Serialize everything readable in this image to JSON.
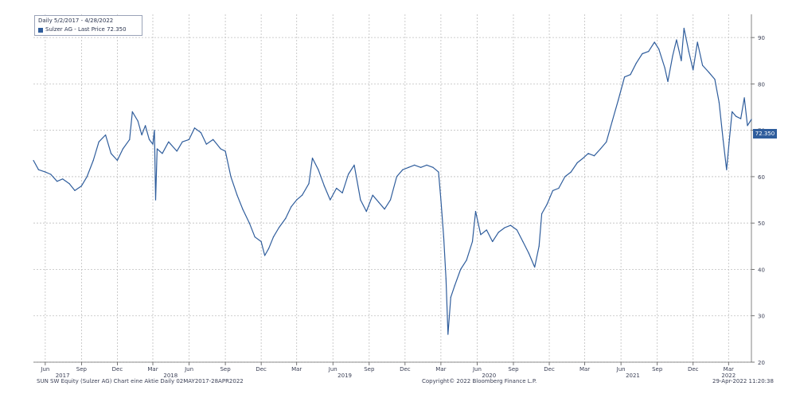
{
  "legend": {
    "date_range": "Daily 5/2/2017 - 4/28/2022",
    "series_label": "Sulzer AG - Last Price 72.350"
  },
  "last_price_tag": "72.350",
  "footer": {
    "left": "SUN SW Equity (Sulzer AG) Chart eine Aktie  Daily 02MAY2017-28APR2022",
    "center": "Copyright© 2022 Bloomberg Finance L.P.",
    "right": "29-Apr-2022 11:20:38"
  },
  "colors": {
    "line": "#2f5d9c",
    "grid": "#bfbfbf",
    "axis_text": "#3a3f55"
  },
  "chart_data": {
    "type": "line",
    "title": "",
    "xlabel": "",
    "ylabel": "",
    "ylim": [
      20,
      95
    ],
    "yticks": [
      20,
      30,
      40,
      50,
      60,
      70,
      80,
      90
    ],
    "xlim": [
      "2017-05-02",
      "2022-04-28"
    ],
    "xticks": [
      {
        "label": "Jun",
        "date": "2017-06-01"
      },
      {
        "label": "Sep",
        "date": "2017-09-01"
      },
      {
        "label": "Dec",
        "date": "2017-12-01"
      },
      {
        "label": "Mar",
        "date": "2018-03-01"
      },
      {
        "label": "Jun",
        "date": "2018-06-01"
      },
      {
        "label": "Sep",
        "date": "2018-09-01"
      },
      {
        "label": "Dec",
        "date": "2018-12-01"
      },
      {
        "label": "Mar",
        "date": "2019-03-01"
      },
      {
        "label": "Jun",
        "date": "2019-06-01"
      },
      {
        "label": "Sep",
        "date": "2019-09-01"
      },
      {
        "label": "Dec",
        "date": "2019-12-01"
      },
      {
        "label": "Mar",
        "date": "2020-03-01"
      },
      {
        "label": "Jun",
        "date": "2020-06-01"
      },
      {
        "label": "Sep",
        "date": "2020-09-01"
      },
      {
        "label": "Dec",
        "date": "2020-12-01"
      },
      {
        "label": "Mar",
        "date": "2021-03-01"
      },
      {
        "label": "Jun",
        "date": "2021-06-01"
      },
      {
        "label": "Sep",
        "date": "2021-09-01"
      },
      {
        "label": "Dec",
        "date": "2021-12-01"
      },
      {
        "label": "Mar",
        "date": "2022-03-01"
      }
    ],
    "year_labels": [
      {
        "label": "2017",
        "date": "2017-07-15"
      },
      {
        "label": "2018",
        "date": "2018-04-15"
      },
      {
        "label": "2019",
        "date": "2019-07-01"
      },
      {
        "label": "2020",
        "date": "2020-07-01"
      },
      {
        "label": "2021",
        "date": "2021-07-01"
      },
      {
        "label": "2022",
        "date": "2022-03-01"
      }
    ],
    "grid": true,
    "legend_position": "top-left",
    "series": [
      {
        "name": "Sulzer AG - Last Price",
        "color": "#2f5d9c",
        "points": [
          [
            "2017-05-02",
            63.5
          ],
          [
            "2017-05-15",
            61.5
          ],
          [
            "2017-06-01",
            61.0
          ],
          [
            "2017-06-15",
            60.5
          ],
          [
            "2017-07-01",
            59.0
          ],
          [
            "2017-07-15",
            59.5
          ],
          [
            "2017-08-01",
            58.5
          ],
          [
            "2017-08-15",
            57.0
          ],
          [
            "2017-09-01",
            58.0
          ],
          [
            "2017-09-15",
            60.0
          ],
          [
            "2017-10-01",
            63.5
          ],
          [
            "2017-10-15",
            67.5
          ],
          [
            "2017-11-01",
            69.0
          ],
          [
            "2017-11-15",
            65.0
          ],
          [
            "2017-12-01",
            63.5
          ],
          [
            "2017-12-15",
            66.0
          ],
          [
            "2018-01-01",
            68.0
          ],
          [
            "2018-01-08",
            74.0
          ],
          [
            "2018-01-22",
            72.0
          ],
          [
            "2018-02-01",
            69.0
          ],
          [
            "2018-02-10",
            71.0
          ],
          [
            "2018-02-20",
            68.0
          ],
          [
            "2018-03-01",
            67.0
          ],
          [
            "2018-03-05",
            70.0
          ],
          [
            "2018-03-08",
            55.0
          ],
          [
            "2018-03-12",
            66.0
          ],
          [
            "2018-03-25",
            65.0
          ],
          [
            "2018-04-10",
            67.5
          ],
          [
            "2018-05-01",
            65.5
          ],
          [
            "2018-05-15",
            67.5
          ],
          [
            "2018-06-01",
            68.0
          ],
          [
            "2018-06-15",
            70.5
          ],
          [
            "2018-07-01",
            69.5
          ],
          [
            "2018-07-15",
            67.0
          ],
          [
            "2018-08-01",
            68.0
          ],
          [
            "2018-08-20",
            66.0
          ],
          [
            "2018-09-01",
            65.5
          ],
          [
            "2018-09-15",
            60.0
          ],
          [
            "2018-10-01",
            56.0
          ],
          [
            "2018-10-15",
            53.0
          ],
          [
            "2018-11-01",
            50.0
          ],
          [
            "2018-11-15",
            47.0
          ],
          [
            "2018-12-01",
            46.0
          ],
          [
            "2018-12-10",
            43.0
          ],
          [
            "2018-12-20",
            44.5
          ],
          [
            "2019-01-01",
            47.0
          ],
          [
            "2019-01-15",
            49.0
          ],
          [
            "2019-02-01",
            51.0
          ],
          [
            "2019-02-15",
            53.5
          ],
          [
            "2019-03-01",
            55.0
          ],
          [
            "2019-03-15",
            56.0
          ],
          [
            "2019-04-01",
            58.5
          ],
          [
            "2019-04-10",
            64.0
          ],
          [
            "2019-04-25",
            61.5
          ],
          [
            "2019-05-10",
            58.0
          ],
          [
            "2019-05-25",
            55.0
          ],
          [
            "2019-06-10",
            57.5
          ],
          [
            "2019-06-25",
            56.5
          ],
          [
            "2019-07-10",
            60.5
          ],
          [
            "2019-07-25",
            62.5
          ],
          [
            "2019-08-10",
            55.0
          ],
          [
            "2019-08-25",
            52.5
          ],
          [
            "2019-09-10",
            56.0
          ],
          [
            "2019-09-25",
            54.5
          ],
          [
            "2019-10-10",
            53.0
          ],
          [
            "2019-10-25",
            55.0
          ],
          [
            "2019-11-10",
            60.0
          ],
          [
            "2019-11-25",
            61.5
          ],
          [
            "2019-12-10",
            62.0
          ],
          [
            "2019-12-25",
            62.5
          ],
          [
            "2020-01-10",
            62.0
          ],
          [
            "2020-01-25",
            62.5
          ],
          [
            "2020-02-10",
            62.0
          ],
          [
            "2020-02-24",
            61.0
          ],
          [
            "2020-03-01",
            55.0
          ],
          [
            "2020-03-08",
            47.0
          ],
          [
            "2020-03-14",
            38.0
          ],
          [
            "2020-03-19",
            26.0
          ],
          [
            "2020-03-26",
            34.0
          ],
          [
            "2020-04-05",
            36.5
          ],
          [
            "2020-04-20",
            40.0
          ],
          [
            "2020-05-05",
            42.0
          ],
          [
            "2020-05-20",
            46.0
          ],
          [
            "2020-05-28",
            52.5
          ],
          [
            "2020-06-10",
            47.5
          ],
          [
            "2020-06-25",
            48.5
          ],
          [
            "2020-07-10",
            46.0
          ],
          [
            "2020-07-25",
            48.0
          ],
          [
            "2020-08-10",
            49.0
          ],
          [
            "2020-08-25",
            49.5
          ],
          [
            "2020-09-10",
            48.5
          ],
          [
            "2020-09-25",
            46.0
          ],
          [
            "2020-10-10",
            43.5
          ],
          [
            "2020-10-25",
            40.5
          ],
          [
            "2020-11-05",
            45.0
          ],
          [
            "2020-11-12",
            52.0
          ],
          [
            "2020-11-25",
            54.0
          ],
          [
            "2020-12-10",
            57.0
          ],
          [
            "2020-12-25",
            57.5
          ],
          [
            "2021-01-10",
            60.0
          ],
          [
            "2021-01-25",
            61.0
          ],
          [
            "2021-02-10",
            63.0
          ],
          [
            "2021-02-25",
            64.0
          ],
          [
            "2021-03-10",
            65.0
          ],
          [
            "2021-03-25",
            64.5
          ],
          [
            "2021-04-10",
            66.0
          ],
          [
            "2021-04-25",
            67.5
          ],
          [
            "2021-05-10",
            72.0
          ],
          [
            "2021-05-25",
            76.5
          ],
          [
            "2021-06-10",
            81.5
          ],
          [
            "2021-06-25",
            82.0
          ],
          [
            "2021-07-10",
            84.5
          ],
          [
            "2021-07-25",
            86.5
          ],
          [
            "2021-08-10",
            87.0
          ],
          [
            "2021-08-25",
            89.0
          ],
          [
            "2021-09-05",
            87.5
          ],
          [
            "2021-09-20",
            83.5
          ],
          [
            "2021-09-28",
            80.5
          ],
          [
            "2021-10-10",
            86.0
          ],
          [
            "2021-10-20",
            89.5
          ],
          [
            "2021-11-01",
            85.0
          ],
          [
            "2021-11-08",
            92.0
          ],
          [
            "2021-11-20",
            87.0
          ],
          [
            "2021-12-01",
            83.0
          ],
          [
            "2021-12-12",
            89.0
          ],
          [
            "2021-12-25",
            84.0
          ],
          [
            "2022-01-10",
            82.5
          ],
          [
            "2022-01-25",
            81.0
          ],
          [
            "2022-02-05",
            76.0
          ],
          [
            "2022-02-15",
            68.0
          ],
          [
            "2022-02-24",
            61.5
          ],
          [
            "2022-03-03",
            68.0
          ],
          [
            "2022-03-10",
            74.0
          ],
          [
            "2022-03-20",
            73.0
          ],
          [
            "2022-04-01",
            72.5
          ],
          [
            "2022-04-10",
            77.0
          ],
          [
            "2022-04-18",
            71.0
          ],
          [
            "2022-04-28",
            72.35
          ]
        ]
      }
    ]
  }
}
